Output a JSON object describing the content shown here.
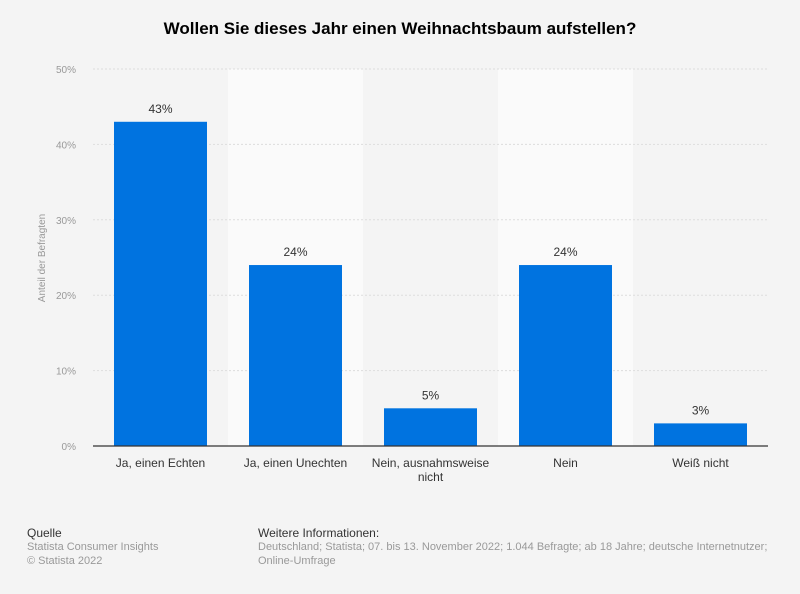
{
  "chart_data": {
    "type": "bar",
    "title": "Wollen Sie dieses Jahr einen Weihnachtsbaum aufstellen?",
    "categories": [
      "Ja, einen Echten",
      "Ja, einen Unechten",
      "Nein, ausnahmsweise nicht",
      "Nein",
      "Weiß nicht"
    ],
    "values": [
      43,
      24,
      5,
      24,
      3
    ],
    "data_labels": [
      "43%",
      "24%",
      "5%",
      "24%",
      "3%"
    ],
    "xlabel": "",
    "ylabel": "Anteil der Befragten",
    "ylim": [
      0,
      50
    ],
    "yticks": [
      "0%",
      "10%",
      "20%",
      "30%",
      "40%",
      "50%"
    ],
    "grid": true,
    "bar_color": "#0073e0"
  },
  "footer": {
    "source_heading": "Quelle",
    "source_line1": "Statista Consumer Insights",
    "source_line2": "© Statista 2022",
    "info_heading": "Weitere Informationen:",
    "info_text": "Deutschland; Statista; 07. bis 13. November 2022; 1.044 Befragte; ab 18 Jahre; deutsche Internetnutzer; Online-Umfrage"
  }
}
